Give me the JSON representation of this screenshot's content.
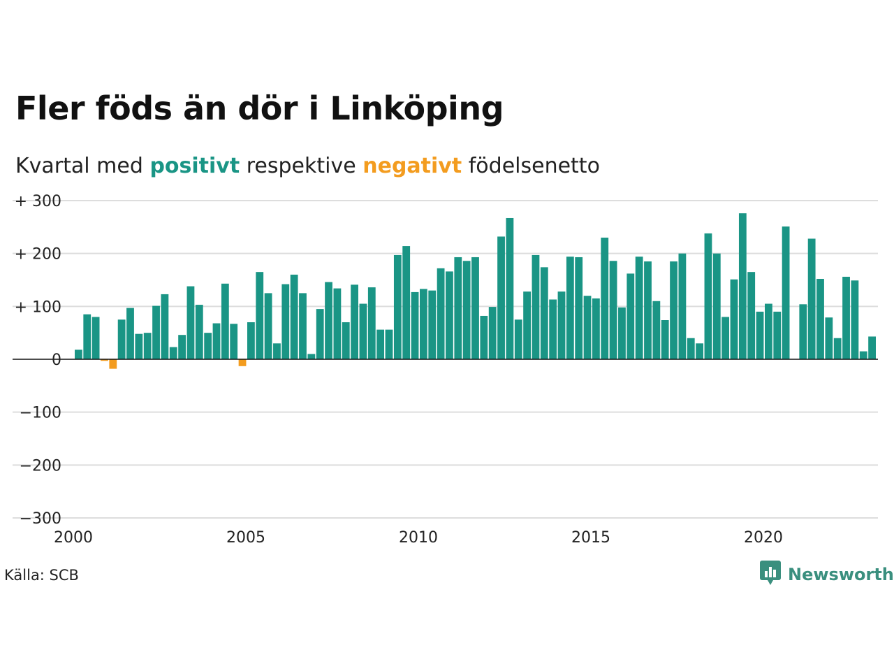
{
  "title": "Fler föds än dör i Linköping",
  "subtitle": {
    "prefix": "Kvartal med",
    "positive_word": "positivt",
    "middle": "respektive",
    "negative_word": "negativt",
    "suffix": "födelsenetto"
  },
  "source": "Källa: SCB",
  "brand": "Newsworthy",
  "colors": {
    "positive": "#1a9585",
    "negative": "#f39c1f",
    "grid": "#dddddd",
    "brand": "#3a8f7e"
  },
  "icons": [
    "newsworthy-logo-icon"
  ],
  "chart_data": {
    "type": "bar",
    "x_start": "2000-Q1",
    "x_ticks": [
      2000,
      2005,
      2010,
      2015,
      2020
    ],
    "y_ticks": [
      {
        "value": 300,
        "label": "+ 300"
      },
      {
        "value": 200,
        "label": "+ 200"
      },
      {
        "value": 100,
        "label": "+ 100"
      },
      {
        "value": 0,
        "label": "0"
      },
      {
        "value": -100,
        "label": "−100"
      },
      {
        "value": -200,
        "label": "−200"
      },
      {
        "value": -300,
        "label": "−300"
      }
    ],
    "ylim": [
      -300,
      300
    ],
    "grid": true,
    "values": [
      18,
      85,
      80,
      -3,
      -18,
      75,
      97,
      48,
      50,
      101,
      123,
      23,
      46,
      138,
      103,
      50,
      68,
      143,
      67,
      -13,
      70,
      165,
      125,
      30,
      142,
      160,
      125,
      10,
      95,
      146,
      134,
      70,
      141,
      105,
      136,
      56,
      56,
      197,
      214,
      127,
      133,
      130,
      172,
      166,
      193,
      186,
      193,
      82,
      99,
      232,
      267,
      75,
      128,
      197,
      174,
      113,
      128,
      194,
      193,
      120,
      115,
      230,
      186,
      98,
      162,
      194,
      185,
      110,
      74,
      185,
      200,
      40,
      30,
      238,
      200,
      80,
      151,
      276,
      165,
      90,
      105,
      90,
      251,
      0,
      104,
      228,
      152,
      79,
      40,
      156,
      149,
      15,
      43
    ]
  }
}
